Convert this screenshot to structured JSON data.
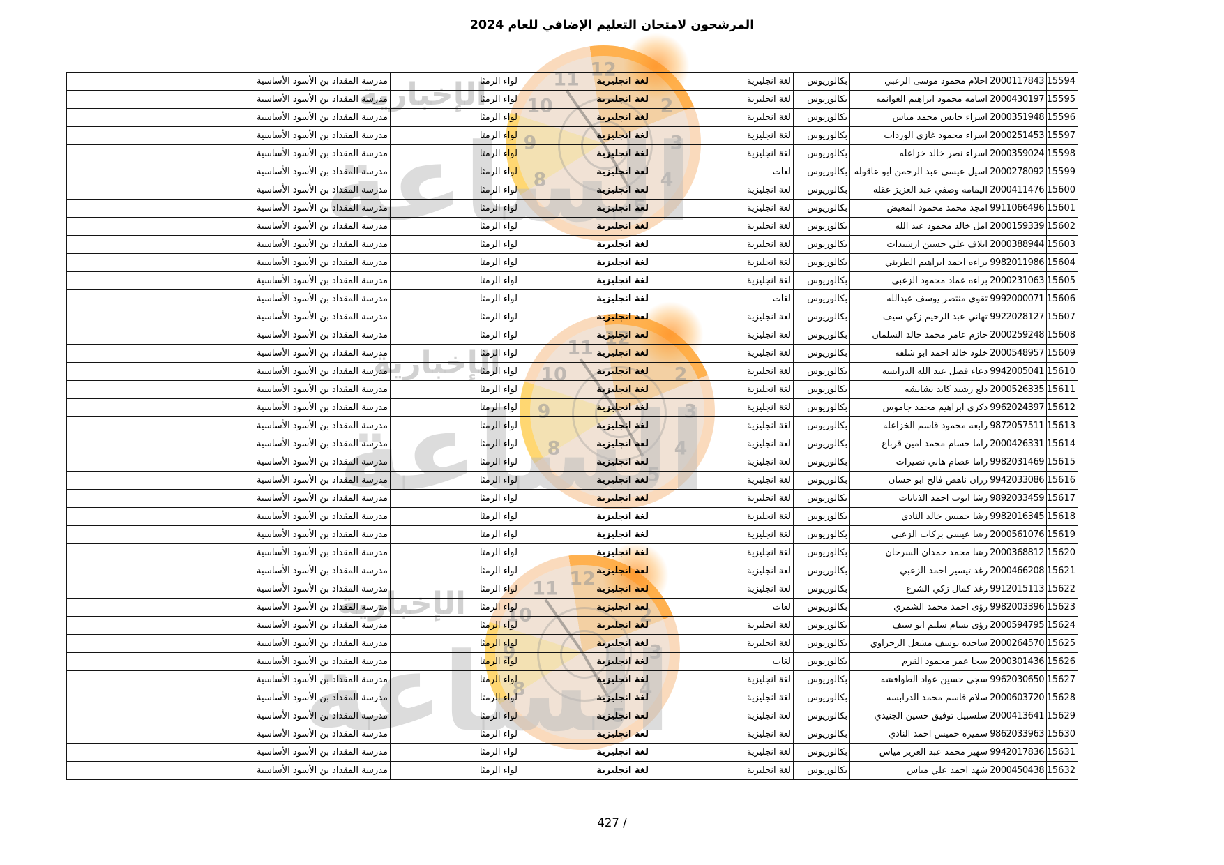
{
  "page": {
    "title": "المرشحون لامتحان التعليم الإضافي للعام 2024",
    "page_number": "427 /"
  },
  "table": {
    "constants": {
      "degree": "بكالوريوس",
      "subject": "لغة انجليزية",
      "district": "لواء الرمثا",
      "school": "مدرسة المقداد بن الأسود الأساسية"
    },
    "rows": [
      {
        "serial": "15594",
        "national_id": "2000117843",
        "name": "احلام محمود موسى الزعبي",
        "specialization": "لغة انجليزية"
      },
      {
        "serial": "15595",
        "national_id": "2000430197",
        "name": "اسامه محمود ابراهيم الغوانمه",
        "specialization": "لغة انجليزية"
      },
      {
        "serial": "15596",
        "national_id": "2000351948",
        "name": "اسراء حابس محمد مياس",
        "specialization": "لغة انجليزية"
      },
      {
        "serial": "15597",
        "national_id": "2000251453",
        "name": "اسراء محمود غازي الوردات",
        "specialization": "لغة انجليزية"
      },
      {
        "serial": "15598",
        "national_id": "2000359024",
        "name": "اسراء نصر خالد خزاعله",
        "specialization": "لغة انجليزية"
      },
      {
        "serial": "15599",
        "national_id": "2000278092",
        "name": "اسيل عيسى عبد الرحمن ابو عاقوله",
        "specialization": "لغات"
      },
      {
        "serial": "15600",
        "national_id": "2000411476",
        "name": "اليمامه وصفي عبد العزيز عقله",
        "specialization": "لغة انجليزية"
      },
      {
        "serial": "15601",
        "national_id": "9911066496",
        "name": "امجد محمد محمود المغيض",
        "specialization": "لغة انجليزية"
      },
      {
        "serial": "15602",
        "national_id": "2000159339",
        "name": "امل خالد محمود عبد الله",
        "specialization": "لغة انجليزية"
      },
      {
        "serial": "15603",
        "national_id": "2000388944",
        "name": "ايلاف علي حسين ارشيدات",
        "specialization": "لغة انجليزية"
      },
      {
        "serial": "15604",
        "national_id": "9982011986",
        "name": "براءه احمد ابراهيم الطريني",
        "specialization": "لغة انجليزية"
      },
      {
        "serial": "15605",
        "national_id": "2000231063",
        "name": "براءه عماد محمود الزعبي",
        "specialization": "لغة انجليزية"
      },
      {
        "serial": "15606",
        "national_id": "9992000071",
        "name": "تقوى منتصر يوسف عبدالله",
        "specialization": "لغات"
      },
      {
        "serial": "15607",
        "national_id": "9922028127",
        "name": "تهاني عبد الرحيم زكي سيف",
        "specialization": "لغة انجليزية"
      },
      {
        "serial": "15608",
        "national_id": "2000259248",
        "name": "حازم عامر محمد خالد السلمان",
        "specialization": "لغة انجليزية"
      },
      {
        "serial": "15609",
        "national_id": "2000548957",
        "name": "خلود خالد احمد ابو شلفه",
        "specialization": "لغة انجليزية"
      },
      {
        "serial": "15610",
        "national_id": "9942005041",
        "name": "دعاء فضل عبد الله الدرابسه",
        "specialization": "لغة انجليزية"
      },
      {
        "serial": "15611",
        "national_id": "2000526335",
        "name": "دلع رشيد كايد بشابشه",
        "specialization": "لغة انجليزية"
      },
      {
        "serial": "15612",
        "national_id": "9962024397",
        "name": "ذكرى ابراهيم محمد جاموس",
        "specialization": "لغة انجليزية"
      },
      {
        "serial": "15613",
        "national_id": "9872057511",
        "name": "رابعه محمود قاسم الخزاعله",
        "specialization": "لغة انجليزية"
      },
      {
        "serial": "15614",
        "national_id": "2000426331",
        "name": "راما حسام محمد امين قرباع",
        "specialization": "لغة انجليزية"
      },
      {
        "serial": "15615",
        "national_id": "9982031469",
        "name": "راما عصام هاني نصيرات",
        "specialization": "لغة انجليزية"
      },
      {
        "serial": "15616",
        "national_id": "9942033086",
        "name": "رزان ناهض فالح ابو حسان",
        "specialization": "لغة انجليزية"
      },
      {
        "serial": "15617",
        "national_id": "9892033459",
        "name": "رشا ايوب احمد الذيابات",
        "specialization": "لغة انجليزية"
      },
      {
        "serial": "15618",
        "national_id": "9982016345",
        "name": "رشا خميس خالد النادي",
        "specialization": "لغة انجليزية"
      },
      {
        "serial": "15619",
        "national_id": "2000561076",
        "name": "رشا عيسى بركات الزعبي",
        "specialization": "لغة انجليزية"
      },
      {
        "serial": "15620",
        "national_id": "2000368812",
        "name": "رشا محمد حمدان السرحان",
        "specialization": "لغة انجليزية"
      },
      {
        "serial": "15621",
        "national_id": "2000466208",
        "name": "رغد تيسير احمد الزعبي",
        "specialization": "لغة انجليزية"
      },
      {
        "serial": "15622",
        "national_id": "9912015113",
        "name": "رغد كمال زكي الشرع",
        "specialization": "لغة انجليزية"
      },
      {
        "serial": "15623",
        "national_id": "9982003396",
        "name": "رؤى احمد محمد الشمري",
        "specialization": "لغات"
      },
      {
        "serial": "15624",
        "national_id": "2000594795",
        "name": "رؤى بسام سليم ابو سيف",
        "specialization": "لغة انجليزية"
      },
      {
        "serial": "15625",
        "national_id": "2000264570",
        "name": "ساجده يوسف مشعل الزحراوي",
        "specialization": "لغة انجليزية"
      },
      {
        "serial": "15626",
        "national_id": "2000301436",
        "name": "سجا عمر محمود القرم",
        "specialization": "لغات"
      },
      {
        "serial": "15627",
        "national_id": "9962030650",
        "name": "سجى حسين عواد الطوافشه",
        "specialization": "لغة انجليزية"
      },
      {
        "serial": "15628",
        "national_id": "2000603720",
        "name": "سلام قاسم محمد الدرابسه",
        "specialization": "لغة انجليزية"
      },
      {
        "serial": "15629",
        "national_id": "2000413641",
        "name": "سلسبيل توفيق حسين الجنيدي",
        "specialization": "لغة انجليزية"
      },
      {
        "serial": "15630",
        "national_id": "9862033963",
        "name": "سميره خميس احمد النادي",
        "specialization": "لغة انجليزية"
      },
      {
        "serial": "15631",
        "national_id": "9942017836",
        "name": "سهير محمد عبد العزيز مياس",
        "specialization": "لغة انجليزية"
      },
      {
        "serial": "15632",
        "national_id": "2000450438",
        "name": "شهد احمد علي مياس",
        "specialization": "لغة انجليزية"
      }
    ]
  },
  "watermark": {
    "brand_text_large": "الساعة",
    "brand_text_small": "الإخبارية",
    "clock_numbers": [
      "12",
      "11",
      "10",
      "9",
      "8",
      "2",
      "3",
      "4",
      "5"
    ],
    "accent_orange": "#f5a35f",
    "accent_yellow": "#ffcd4e"
  }
}
